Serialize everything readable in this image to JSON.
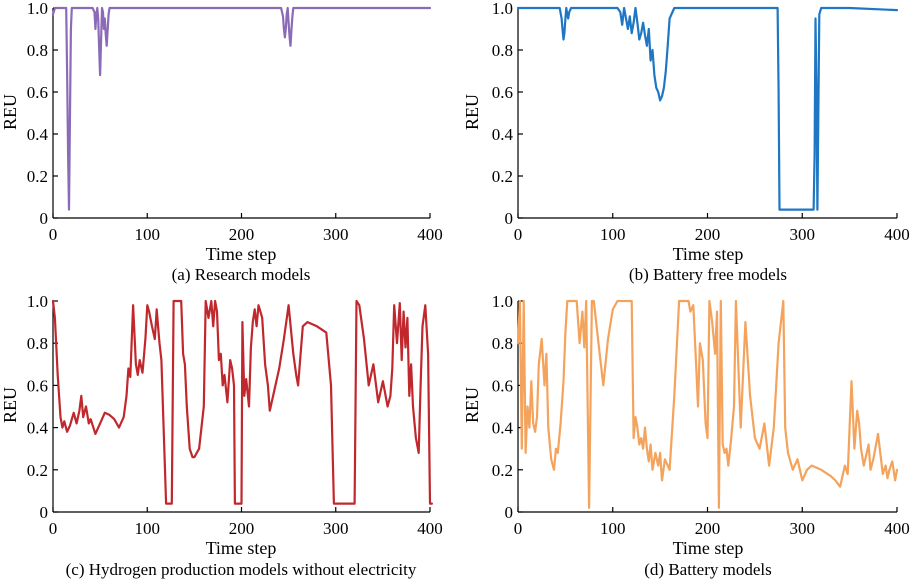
{
  "chart_data": [
    {
      "type": "line",
      "caption": "(a) Research models",
      "xlabel": "Time step",
      "ylabel": "REU",
      "xlim": [
        0,
        400
      ],
      "ylim": [
        0,
        1
      ],
      "xticks": [
        "0",
        "100",
        "200",
        "300",
        "400"
      ],
      "yticks": [
        "0",
        "0.2",
        "0.4",
        "0.6",
        "0.8",
        "1.0"
      ],
      "series": [
        {
          "color": "#8b6bb8",
          "x": [
            0,
            2,
            4,
            6,
            8,
            10,
            12,
            14,
            15,
            16,
            17,
            18,
            19,
            20,
            22,
            24,
            26,
            28,
            30,
            32,
            34,
            36,
            38,
            40,
            42,
            44,
            45,
            46,
            47,
            48,
            49,
            50,
            51,
            52,
            53,
            54,
            55,
            56,
            57,
            58,
            59,
            60,
            61,
            62,
            64,
            66,
            68,
            70,
            80,
            100,
            150,
            200,
            240,
            242,
            244,
            245,
            246,
            247,
            248,
            249,
            250,
            251,
            252,
            253,
            254,
            255,
            256,
            258,
            260,
            300,
            350,
            400
          ],
          "y": [
            0.97,
            1.0,
            1.0,
            1.0,
            1.0,
            1.0,
            1.0,
            1.0,
            0.7,
            0.3,
            0.04,
            0.5,
            0.9,
            1.0,
            1.0,
            1.0,
            1.0,
            1.0,
            1.0,
            1.0,
            1.0,
            1.0,
            1.0,
            1.0,
            1.0,
            0.98,
            0.9,
            0.97,
            1.0,
            0.95,
            0.8,
            0.68,
            0.85,
            1.0,
            0.98,
            0.9,
            0.95,
            0.87,
            0.82,
            0.9,
            0.97,
            1.0,
            1.0,
            1.0,
            1.0,
            1.0,
            1.0,
            1.0,
            1.0,
            1.0,
            1.0,
            1.0,
            1.0,
            1.0,
            0.96,
            0.9,
            0.86,
            0.9,
            0.97,
            1.0,
            0.93,
            0.86,
            0.82,
            0.9,
            0.96,
            1.0,
            1.0,
            1.0,
            1.0,
            1.0,
            1.0,
            1.0
          ]
        }
      ]
    },
    {
      "type": "line",
      "caption": "(b) Battery free models",
      "xlabel": "Time step",
      "ylabel": "REU",
      "xlim": [
        0,
        400
      ],
      "ylim": [
        0,
        1
      ],
      "xticks": [
        "0",
        "100",
        "200",
        "300",
        "400"
      ],
      "yticks": [
        "0",
        "0.2",
        "0.4",
        "0.6",
        "0.8",
        "1.0"
      ],
      "series": [
        {
          "color": "#1f77c4",
          "x": [
            0,
            20,
            40,
            44,
            46,
            47,
            48,
            49,
            50,
            51,
            52,
            53,
            54,
            56,
            60,
            80,
            100,
            105,
            108,
            110,
            112,
            114,
            116,
            118,
            120,
            122,
            124,
            126,
            128,
            130,
            132,
            134,
            136,
            138,
            140,
            142,
            144,
            146,
            148,
            150,
            152,
            154,
            156,
            158,
            160,
            165,
            200,
            250,
            270,
            274,
            275,
            276,
            280,
            300,
            310,
            312,
            313,
            314,
            315,
            316,
            318,
            320,
            350,
            400
          ],
          "y": [
            1.0,
            1.0,
            1.0,
            1.0,
            0.95,
            0.9,
            0.85,
            0.88,
            0.95,
            1.0,
            0.97,
            0.95,
            0.98,
            1.0,
            1.0,
            1.0,
            1.0,
            1.0,
            0.98,
            0.92,
            1.0,
            0.95,
            0.9,
            0.96,
            0.88,
            0.93,
            1.0,
            0.93,
            0.85,
            0.88,
            0.93,
            0.87,
            0.82,
            0.9,
            0.75,
            0.8,
            0.68,
            0.62,
            0.6,
            0.56,
            0.58,
            0.62,
            0.7,
            0.82,
            0.95,
            1.0,
            1.0,
            1.0,
            1.0,
            1.0,
            0.6,
            0.04,
            0.04,
            0.04,
            0.04,
            0.04,
            0.3,
            0.95,
            0.6,
            0.04,
            0.97,
            1.0,
            1.0,
            0.99
          ]
        }
      ]
    },
    {
      "type": "line",
      "caption": "(c) Hydrogen production models without electricity",
      "xlabel": "Time step",
      "ylabel": "REU",
      "xlim": [
        0,
        400
      ],
      "ylim": [
        0,
        1
      ],
      "xticks": [
        "0",
        "100",
        "200",
        "300",
        "400"
      ],
      "yticks": [
        "0",
        "0.2",
        "0.4",
        "0.6",
        "0.8",
        "1.0"
      ],
      "series": [
        {
          "color": "#c0282d",
          "x": [
            0,
            2,
            5,
            8,
            10,
            12,
            15,
            18,
            20,
            22,
            25,
            28,
            30,
            32,
            35,
            38,
            40,
            45,
            50,
            55,
            60,
            65,
            70,
            75,
            78,
            80,
            82,
            85,
            88,
            90,
            92,
            95,
            98,
            100,
            102,
            105,
            108,
            110,
            112,
            113,
            115,
            120,
            122,
            124,
            126,
            128,
            130,
            132,
            134,
            136,
            138,
            140,
            142,
            145,
            148,
            150,
            155,
            160,
            162,
            165,
            168,
            170,
            172,
            174,
            176,
            178,
            180,
            182,
            185,
            188,
            190,
            192,
            193,
            195,
            200,
            201,
            203,
            205,
            208,
            210,
            212,
            214,
            216,
            218,
            220,
            222,
            225,
            228,
            230,
            235,
            240,
            245,
            250,
            255,
            258,
            260,
            265,
            270,
            280,
            290,
            295,
            298,
            300,
            320,
            322,
            325,
            330,
            335,
            340,
            345,
            350,
            355,
            358,
            360,
            362,
            365,
            368,
            370,
            372,
            374,
            376,
            378,
            380,
            382,
            385,
            388,
            390,
            392,
            395,
            398,
            400,
            402
          ],
          "y": [
            1.0,
            0.92,
            0.65,
            0.45,
            0.4,
            0.43,
            0.38,
            0.41,
            0.44,
            0.47,
            0.42,
            0.48,
            0.55,
            0.45,
            0.5,
            0.42,
            0.44,
            0.37,
            0.42,
            0.47,
            0.46,
            0.44,
            0.4,
            0.45,
            0.55,
            0.68,
            0.64,
            0.98,
            0.7,
            0.65,
            0.72,
            0.66,
            0.82,
            0.98,
            0.95,
            0.88,
            0.82,
            0.96,
            0.85,
            0.8,
            0.72,
            0.04,
            0.04,
            0.04,
            0.04,
            1.0,
            1.0,
            1.0,
            1.0,
            1.0,
            0.75,
            0.7,
            0.5,
            0.3,
            0.26,
            0.26,
            0.3,
            0.5,
            1.0,
            0.92,
            1.0,
            0.88,
            1.0,
            0.95,
            0.72,
            0.75,
            0.6,
            0.65,
            0.52,
            0.72,
            0.68,
            0.6,
            0.04,
            0.04,
            0.04,
            0.9,
            0.55,
            0.63,
            0.5,
            0.78,
            0.9,
            0.96,
            0.88,
            0.98,
            0.95,
            0.92,
            0.7,
            0.6,
            0.48,
            0.58,
            0.68,
            0.82,
            0.98,
            0.75,
            0.65,
            0.6,
            0.88,
            0.9,
            0.88,
            0.85,
            0.6,
            0.04,
            0.04,
            0.04,
            1.0,
            0.98,
            0.82,
            0.6,
            0.7,
            0.52,
            0.62,
            0.5,
            0.55,
            0.68,
            0.98,
            0.8,
            0.99,
            0.72,
            0.95,
            0.78,
            0.92,
            0.55,
            0.7,
            0.5,
            0.35,
            0.28,
            0.6,
            0.88,
            0.98,
            0.75,
            0.04,
            0.04
          ]
        }
      ]
    },
    {
      "type": "line",
      "caption": "(d) Battery models",
      "xlabel": "Time step",
      "ylabel": "REU",
      "xlim": [
        0,
        400
      ],
      "ylim": [
        0,
        1
      ],
      "xticks": [
        "0",
        "100",
        "200",
        "300",
        "400"
      ],
      "yticks": [
        "0",
        "0.2",
        "0.4",
        "0.6",
        "0.8",
        "1.0"
      ],
      "series": [
        {
          "color": "#f4a35c",
          "x": [
            0,
            2,
            4,
            6,
            8,
            10,
            12,
            14,
            16,
            18,
            20,
            22,
            25,
            28,
            30,
            32,
            35,
            38,
            40,
            42,
            45,
            48,
            50,
            52,
            55,
            58,
            60,
            62,
            65,
            68,
            70,
            72,
            75,
            78,
            80,
            85,
            90,
            95,
            100,
            105,
            110,
            115,
            120,
            122,
            124,
            126,
            128,
            130,
            132,
            134,
            136,
            138,
            140,
            142,
            145,
            148,
            150,
            152,
            155,
            158,
            160,
            165,
            170,
            175,
            180,
            182,
            185,
            188,
            190,
            192,
            195,
            198,
            200,
            202,
            205,
            208,
            210,
            212,
            214,
            216,
            218,
            220,
            222,
            225,
            228,
            230,
            235,
            240,
            245,
            250,
            255,
            260,
            265,
            270,
            275,
            280,
            282,
            285,
            290,
            295,
            300,
            305,
            310,
            320,
            330,
            335,
            340,
            345,
            348,
            350,
            352,
            355,
            358,
            360,
            362,
            365,
            368,
            370,
            372,
            375,
            380,
            385,
            388,
            390,
            392,
            395,
            398,
            400
          ],
          "y": [
            0.8,
            1.0,
            0.3,
            1.0,
            0.28,
            0.5,
            0.4,
            0.62,
            0.42,
            0.38,
            0.45,
            0.7,
            0.82,
            0.6,
            0.75,
            0.4,
            0.25,
            0.2,
            0.3,
            0.28,
            0.42,
            0.62,
            0.85,
            1.0,
            1.0,
            1.0,
            1.0,
            1.0,
            0.8,
            0.95,
            0.78,
            1.0,
            0.02,
            1.0,
            1.0,
            0.8,
            0.6,
            0.82,
            0.96,
            1.0,
            1.0,
            1.0,
            1.0,
            0.35,
            0.45,
            0.4,
            0.32,
            0.35,
            0.3,
            0.4,
            0.3,
            0.24,
            0.32,
            0.2,
            0.28,
            0.22,
            0.28,
            0.15,
            0.25,
            0.22,
            0.2,
            0.55,
            1.0,
            1.0,
            1.0,
            0.95,
            0.98,
            0.7,
            0.5,
            0.8,
            0.72,
            0.42,
            0.35,
            1.0,
            0.9,
            0.75,
            0.95,
            0.02,
            1.0,
            0.32,
            0.28,
            0.3,
            0.22,
            0.35,
            0.5,
            1.0,
            0.4,
            0.9,
            0.55,
            0.35,
            0.3,
            0.42,
            0.22,
            0.4,
            0.8,
            1.0,
            0.4,
            0.28,
            0.2,
            0.25,
            0.15,
            0.2,
            0.22,
            0.2,
            0.17,
            0.15,
            0.12,
            0.22,
            0.18,
            0.4,
            0.62,
            0.3,
            0.48,
            0.42,
            0.3,
            0.22,
            0.28,
            0.32,
            0.2,
            0.25,
            0.37,
            0.18,
            0.22,
            0.16,
            0.2,
            0.24,
            0.15,
            0.2
          ]
        }
      ]
    }
  ]
}
